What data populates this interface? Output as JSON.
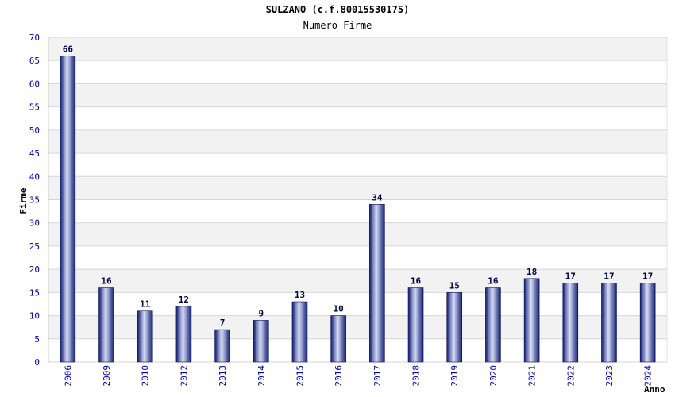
{
  "chart_data": {
    "type": "bar",
    "title": "SULZANO (c.f.80015530175)",
    "subtitle": "Numero Firme",
    "ylabel": "Firme",
    "xlabel": "Anno",
    "categories": [
      "2006",
      "2009",
      "2010",
      "2012",
      "2013",
      "2014",
      "2015",
      "2016",
      "2017",
      "2018",
      "2019",
      "2020",
      "2021",
      "2022",
      "2023",
      "2024"
    ],
    "values": [
      66,
      16,
      11,
      12,
      7,
      9,
      13,
      10,
      34,
      16,
      15,
      16,
      18,
      17,
      17,
      17
    ],
    "ylim": [
      0,
      70
    ],
    "yticks": [
      0,
      5,
      10,
      15,
      20,
      25,
      30,
      35,
      40,
      45,
      50,
      55,
      60,
      65,
      70
    ],
    "grid": true,
    "colors": {
      "bar": "#1a2a8a",
      "bar_highlight": "#d8defa",
      "axis_text": "#0000aa",
      "value_label": "#000044",
      "band_alt": "#f2f2f2"
    }
  }
}
